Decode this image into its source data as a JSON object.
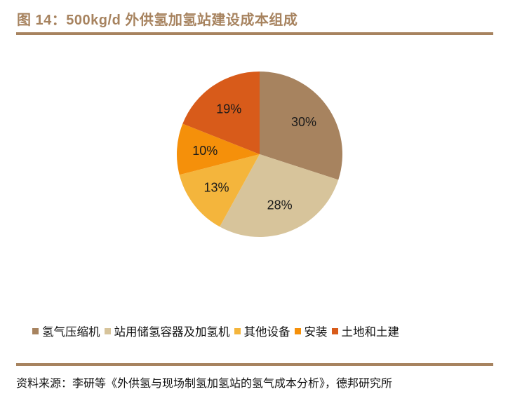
{
  "title": "图 14：500kg/d 外供氢加氢站建设成本组成",
  "chart_data": {
    "type": "pie",
    "title": "500kg/d 外供氢加氢站建设成本组成",
    "categories": [
      "氢气压缩机",
      "站用储氢容器及加氢机",
      "其他设备",
      "安装",
      "土地和土建"
    ],
    "values": [
      30,
      28,
      13,
      10,
      19
    ],
    "labels": [
      "30%",
      "28%",
      "13%",
      "10%",
      "19%"
    ],
    "colors": [
      "#A7835F",
      "#D7C49B",
      "#F4B53C",
      "#F5900A",
      "#D85B1A"
    ],
    "start_angle": "12 o'clock, clockwise",
    "legend_position": "bottom",
    "center": [
      370,
      220
    ],
    "radius": 118
  },
  "legend": [
    {
      "label": "氢气压缩机",
      "color": "#A7835F"
    },
    {
      "label": "站用储氢容器及加氢机",
      "color": "#D7C49B"
    },
    {
      "label": "其他设备",
      "color": "#F4B53C"
    },
    {
      "label": "安装",
      "color": "#F5900A"
    },
    {
      "label": "土地和土建",
      "color": "#D85B1A"
    }
  ],
  "source": "资料来源：李研等《外供氢与现场制氢加氢站的氢气成本分析》，德邦研究所"
}
